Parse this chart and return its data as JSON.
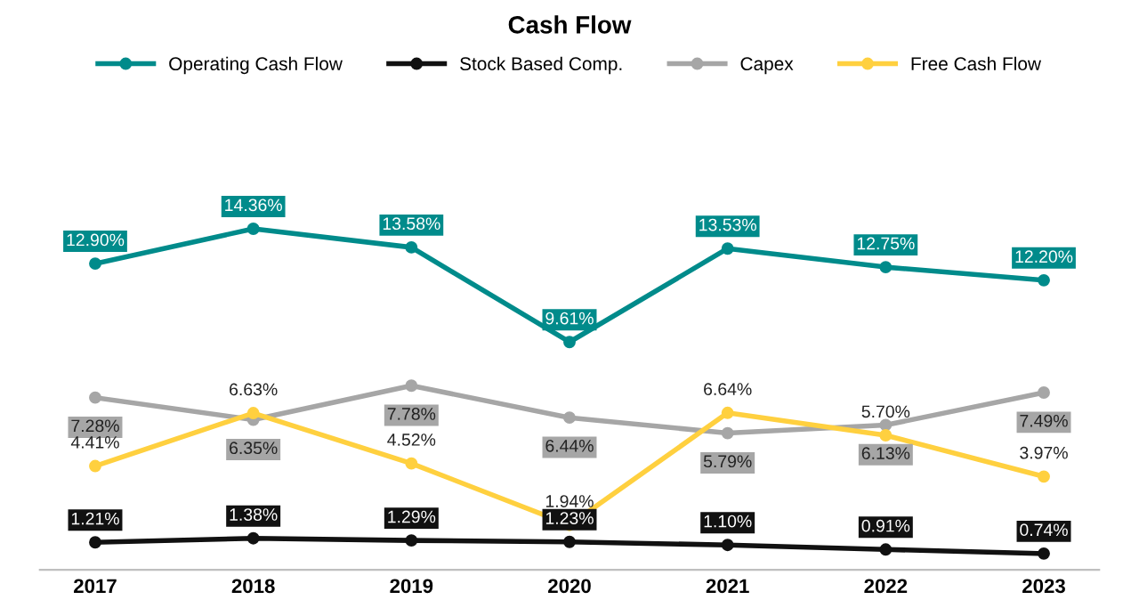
{
  "chart_data": {
    "type": "line",
    "title": "Cash Flow",
    "categories": [
      "2017",
      "2018",
      "2019",
      "2020",
      "2021",
      "2022",
      "2023"
    ],
    "tick_labels": "x",
    "grid": false,
    "legend": "top",
    "marker": "circle",
    "line_style": "solid",
    "series": [
      {
        "name": "Operating Cash Flow",
        "color": "#008b8b",
        "values": [
          12.9,
          14.36,
          13.58,
          9.61,
          13.53,
          12.75,
          12.2
        ],
        "value_labels": [
          "12.90%",
          "14.36%",
          "13.58%",
          "9.61%",
          "13.53%",
          "12.75%",
          "12.20%"
        ]
      },
      {
        "name": "Stock Based Comp.",
        "color": "#111111",
        "values": [
          1.21,
          1.38,
          1.29,
          1.23,
          1.1,
          0.91,
          0.74
        ],
        "value_labels": [
          "1.21%",
          "1.38%",
          "1.29%",
          "1.23%",
          "1.10%",
          "0.91%",
          "0.74%"
        ]
      },
      {
        "name": "Capex",
        "color": "#a6a6a6",
        "values": [
          7.28,
          6.35,
          7.78,
          6.44,
          5.79,
          6.13,
          7.49
        ],
        "value_labels": [
          "7.28%",
          "6.35%",
          "7.78%",
          "6.44%",
          "5.79%",
          "6.13%",
          "7.49%"
        ]
      },
      {
        "name": "Free Cash Flow",
        "color": "#ffd03f",
        "values": [
          4.41,
          6.63,
          4.52,
          1.94,
          6.64,
          5.7,
          3.97
        ],
        "value_labels": [
          "4.41%",
          "6.63%",
          "4.52%",
          "1.94%",
          "6.64%",
          "5.70%",
          "3.97%"
        ]
      }
    ]
  }
}
